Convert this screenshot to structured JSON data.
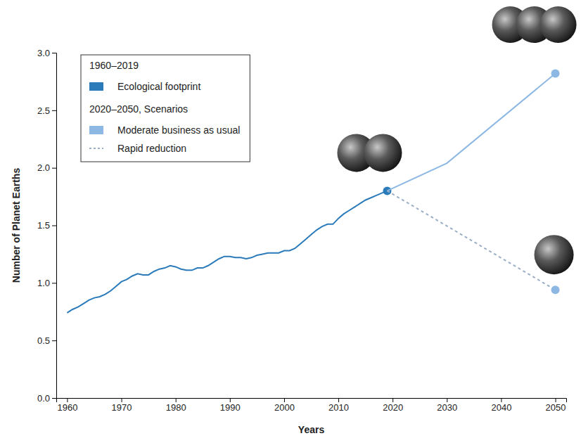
{
  "chart_data": {
    "type": "line",
    "x_label": "Years",
    "y_label": "Number of Planet Earths",
    "xlim": [
      1958,
      2052
    ],
    "ylim": [
      0,
      3
    ],
    "xticks": [
      1960,
      1970,
      1980,
      1990,
      2000,
      2010,
      2020,
      2030,
      2040,
      2050
    ],
    "yticks": [
      {
        "value": 0,
        "label": "0.0"
      },
      {
        "value": 0.5,
        "label": "0.5"
      },
      {
        "value": 1,
        "label": "1.0"
      },
      {
        "value": 1.5,
        "label": "1.5"
      },
      {
        "value": 2,
        "label": "2.0"
      },
      {
        "value": 2.5,
        "label": "2.5"
      },
      {
        "value": 3,
        "label": "3.0"
      }
    ],
    "grid": false,
    "legend": "top-left",
    "series": [
      {
        "name": "Ecological footprint",
        "group": "1960–2019",
        "color": "#2b7bba",
        "line_style": "solid",
        "marker": "circle",
        "x": [
          1960,
          1961,
          1962,
          1963,
          1964,
          1965,
          1966,
          1967,
          1968,
          1969,
          1970,
          1971,
          1972,
          1973,
          1974,
          1975,
          1976,
          1977,
          1978,
          1979,
          1980,
          1981,
          1982,
          1983,
          1984,
          1985,
          1986,
          1987,
          1988,
          1989,
          1990,
          1991,
          1992,
          1993,
          1994,
          1995,
          1996,
          1997,
          1998,
          1999,
          2000,
          2001,
          2002,
          2003,
          2004,
          2005,
          2006,
          2007,
          2008,
          2009,
          2010,
          2011,
          2012,
          2013,
          2014,
          2015,
          2016,
          2017,
          2018,
          2019
        ],
        "values": [
          0.74,
          0.77,
          0.79,
          0.82,
          0.85,
          0.87,
          0.88,
          0.9,
          0.93,
          0.97,
          1.01,
          1.03,
          1.06,
          1.08,
          1.07,
          1.07,
          1.1,
          1.12,
          1.13,
          1.15,
          1.14,
          1.12,
          1.11,
          1.11,
          1.13,
          1.13,
          1.15,
          1.18,
          1.21,
          1.23,
          1.23,
          1.22,
          1.22,
          1.21,
          1.22,
          1.24,
          1.25,
          1.26,
          1.26,
          1.26,
          1.28,
          1.28,
          1.3,
          1.34,
          1.38,
          1.42,
          1.46,
          1.49,
          1.51,
          1.51,
          1.56,
          1.6,
          1.63,
          1.66,
          1.69,
          1.72,
          1.74,
          1.76,
          1.78,
          1.8
        ]
      },
      {
        "name": "Moderate business as usual",
        "group": "2020–2050, Scenarios",
        "color": "#8db8e3",
        "line_style": "solid",
        "marker": "circle",
        "x": [
          2019,
          2030,
          2050
        ],
        "values": [
          1.8,
          2.04,
          2.82
        ]
      },
      {
        "name": "Rapid reduction",
        "color": "#9aaec6",
        "line_style": "dashed",
        "marker": "circle",
        "x": [
          2019,
          2050
        ],
        "values": [
          1.8,
          0.94
        ]
      }
    ]
  }
}
